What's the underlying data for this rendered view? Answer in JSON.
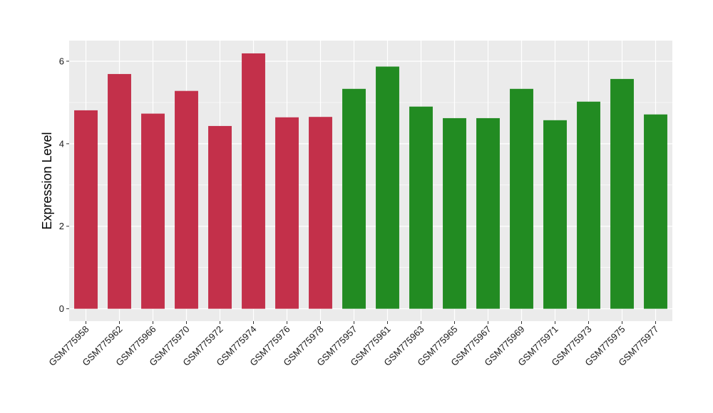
{
  "chart_data": {
    "type": "bar",
    "title": "",
    "xlabel": "",
    "ylabel": "Expression Level",
    "ylim": [
      -0.3,
      6.5
    ],
    "yticks": [
      0,
      2,
      4,
      6
    ],
    "grid": true,
    "categories": [
      "GSM775958",
      "GSM775962",
      "GSM775966",
      "GSM775970",
      "GSM775972",
      "GSM775974",
      "GSM775976",
      "GSM775978",
      "GSM775957",
      "GSM775961",
      "GSM775963",
      "GSM775965",
      "GSM775967",
      "GSM775969",
      "GSM775971",
      "GSM775973",
      "GSM775975",
      "GSM775977"
    ],
    "values": [
      4.81,
      5.69,
      4.73,
      5.28,
      4.43,
      6.19,
      4.64,
      4.65,
      5.33,
      5.87,
      4.9,
      4.62,
      4.62,
      5.33,
      4.57,
      5.02,
      5.57,
      4.71
    ],
    "colors": [
      "#C3304A",
      "#C3304A",
      "#C3304A",
      "#C3304A",
      "#C3304A",
      "#C3304A",
      "#C3304A",
      "#C3304A",
      "#228B22",
      "#228B22",
      "#228B22",
      "#228B22",
      "#228B22",
      "#228B22",
      "#228B22",
      "#228B22",
      "#228B22",
      "#228B22"
    ],
    "panel_background": "#EBEBEB",
    "gridline_color": "#FFFFFF"
  }
}
